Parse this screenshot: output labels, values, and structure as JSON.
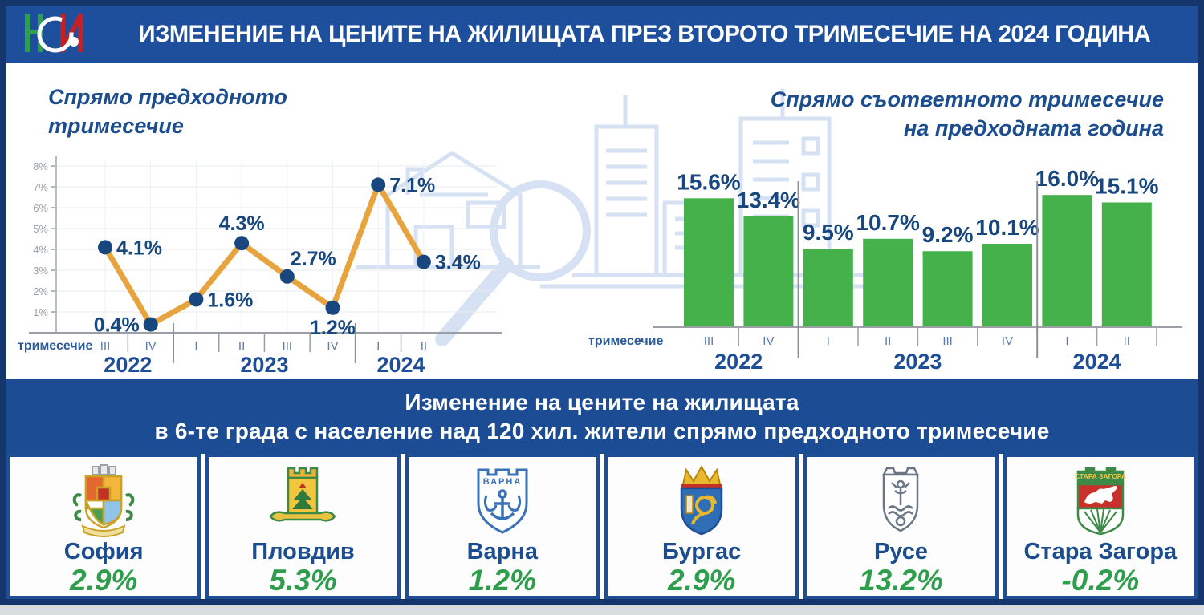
{
  "header": {
    "title": "ИЗМЕНЕНИЕ НА ЦЕНИТЕ НА ЖИЛИЩАТА ПРЕЗ ВТОРОТО ТРИМЕСЕЧИЕ НА 2024 ГОДИНА",
    "logo_text": "НСИ"
  },
  "colors": {
    "frame": "#15366D",
    "header_bg": "#1E4F9C",
    "banner_bg": "#1C4C94",
    "navy_text": "#17477E",
    "chart_title": "#1B4D8F",
    "line": "#E7A33E",
    "dot": "#17477E",
    "bar": "#45B14B",
    "value_green": "#2F9E4C",
    "axis_gray": "#9AA0A6",
    "grid_gray": "#E7EAEE",
    "tick_label": "#9AA0A6",
    "quarter_label": "#5B7AA6",
    "year_label": "#1D4E96",
    "axis_word": "#2B5A9B",
    "watermark": "#CFDEF2"
  },
  "chart_data": [
    {
      "type": "line",
      "title": "Спрямо предходното тримесечие",
      "axis_word": "тримесечие",
      "categories": [
        "III",
        "IV",
        "I",
        "II",
        "III",
        "IV",
        "I",
        "II"
      ],
      "year_groups": [
        {
          "label": "2022",
          "span": 2
        },
        {
          "label": "2023",
          "span": 4
        },
        {
          "label": "2024",
          "span": 2
        }
      ],
      "values": [
        4.1,
        0.4,
        1.6,
        4.3,
        2.7,
        1.2,
        7.1,
        3.4
      ],
      "labels": [
        "4.1%",
        "0.4%",
        "1.6%",
        "4.3%",
        "2.7%",
        "1.2%",
        "7.1%",
        "3.4%"
      ],
      "label_placement": [
        "right",
        "left",
        "right",
        "above",
        "above-right",
        "below",
        "right",
        "right"
      ],
      "ylim": [
        0,
        8.3
      ],
      "yticks": [
        "8%",
        "7%",
        "6%",
        "5%",
        "4%",
        "3%",
        "2%",
        "1%"
      ],
      "grid": true
    },
    {
      "type": "bar",
      "title": "Спрямо съответното тримесечие на предходната година",
      "axis_word": "тримесечие",
      "categories": [
        "III",
        "IV",
        "I",
        "II",
        "III",
        "IV",
        "I",
        "II"
      ],
      "year_groups": [
        {
          "label": "2022",
          "span": 2
        },
        {
          "label": "2023",
          "span": 4
        },
        {
          "label": "2024",
          "span": 2
        }
      ],
      "values": [
        15.6,
        13.4,
        9.5,
        10.7,
        9.2,
        10.1,
        16.0,
        15.1
      ],
      "labels": [
        "15.6%",
        "13.4%",
        "9.5%",
        "10.7%",
        "9.2%",
        "10.1%",
        "16.0%",
        "15.1%"
      ],
      "ylim": [
        0,
        17
      ],
      "grid": false
    }
  ],
  "banner": {
    "line1": "Изменение на цените на жилищата",
    "line2": "в 6-те града с население над 120 хил. жители спрямо предходното тримесечие"
  },
  "cities": [
    {
      "name": "София",
      "value": "2.9%",
      "emblem": "sofia-emblem"
    },
    {
      "name": "Пловдив",
      "value": "5.3%",
      "emblem": "plovdiv-emblem"
    },
    {
      "name": "Варна",
      "value": "1.2%",
      "emblem": "varna-emblem"
    },
    {
      "name": "Бургас",
      "value": "2.9%",
      "emblem": "burgas-emblem"
    },
    {
      "name": "Русе",
      "value": "13.2%",
      "emblem": "ruse-emblem"
    },
    {
      "name": "Стара Загора",
      "value": "-0.2%",
      "emblem": "stara-zagora-emblem"
    }
  ]
}
